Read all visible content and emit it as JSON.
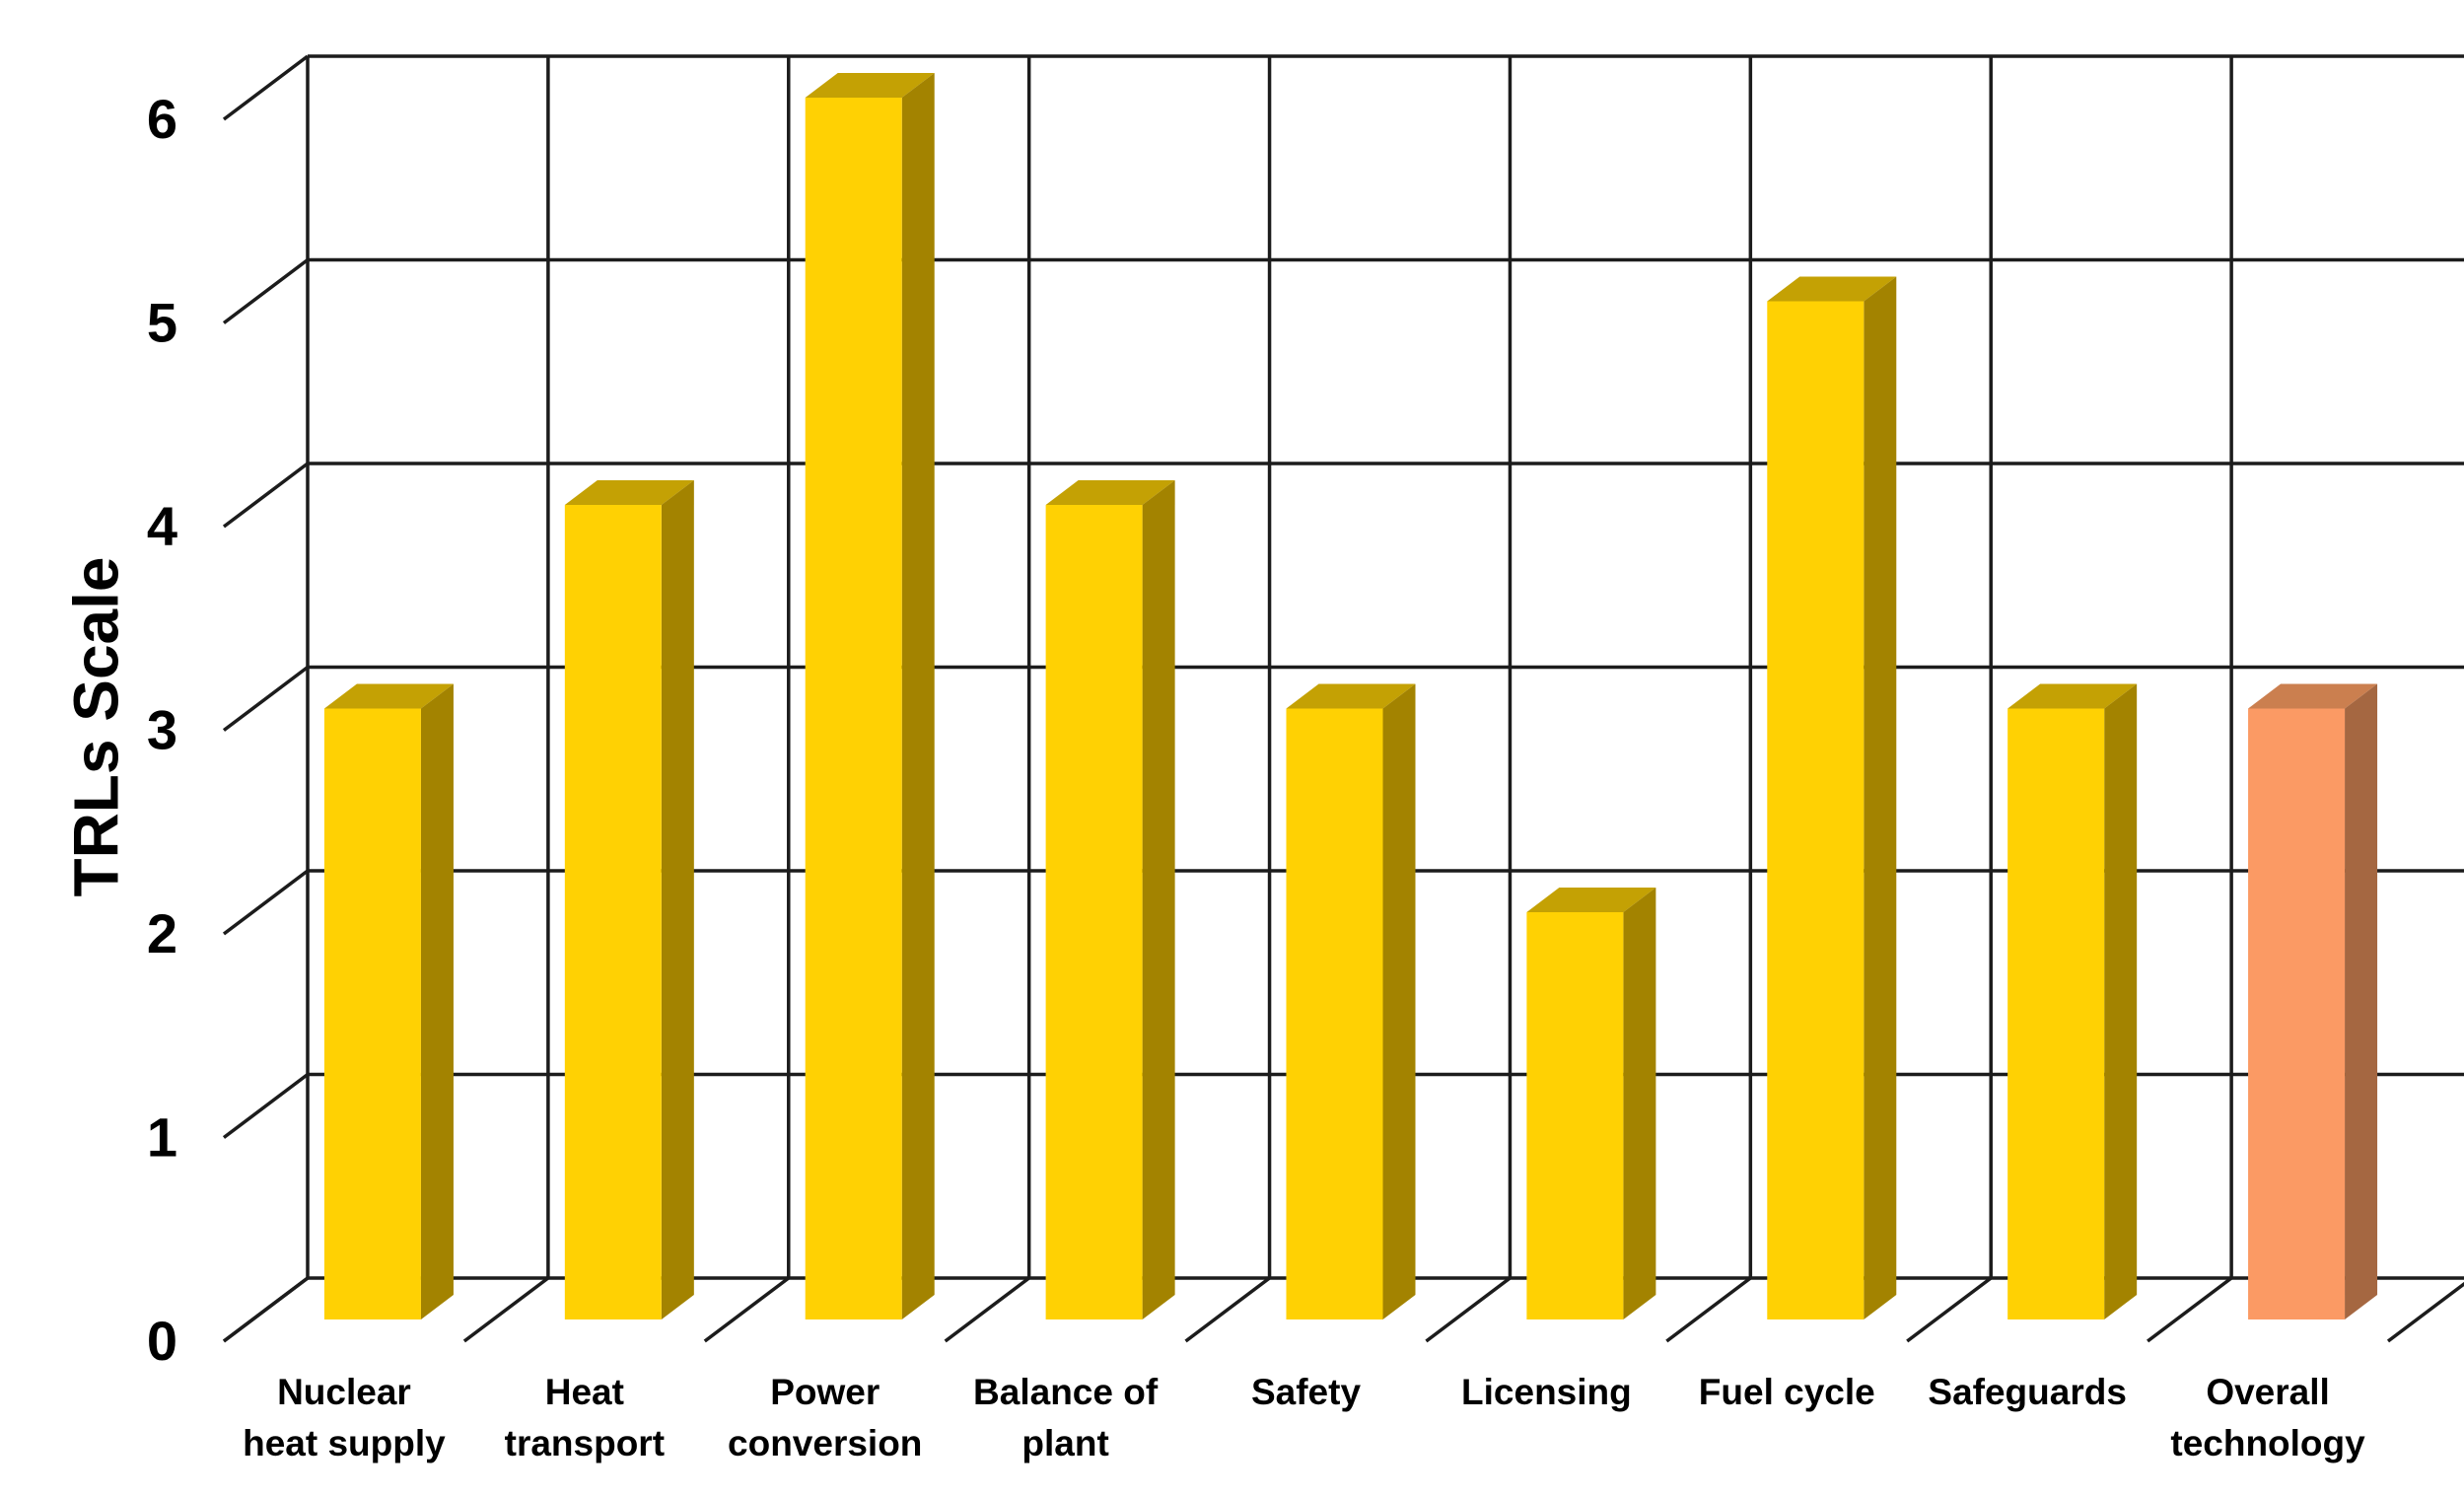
{
  "chart_data": {
    "type": "bar",
    "style": "3d-clustered-column",
    "title": "",
    "xlabel": "",
    "ylabel": "TRLs Scale",
    "ylim": [
      0,
      6
    ],
    "ytick_labels": [
      "0",
      "1",
      "2",
      "3",
      "4",
      "5",
      "6"
    ],
    "grid": true,
    "legend_position": "none",
    "categories": [
      "Nuclear heat supply",
      "Heat transport",
      "Power conversion",
      "Balance of plant",
      "Safety",
      "Licensing",
      "Fuel cycle",
      "Safeguards",
      "Overall technology"
    ],
    "values": [
      3,
      4,
      6,
      4,
      3,
      2,
      5,
      3,
      3
    ],
    "bars": [
      {
        "label_lines": [
          "Nuclear",
          "heat supply"
        ],
        "value": 3,
        "color": "gold"
      },
      {
        "label_lines": [
          "Heat",
          "transport"
        ],
        "value": 4,
        "color": "gold"
      },
      {
        "label_lines": [
          "Power",
          "conversion"
        ],
        "value": 6,
        "color": "gold"
      },
      {
        "label_lines": [
          "Balance of",
          "plant"
        ],
        "value": 4,
        "color": "gold"
      },
      {
        "label_lines": [
          "Safety"
        ],
        "value": 3,
        "color": "gold"
      },
      {
        "label_lines": [
          "Licensing"
        ],
        "value": 2,
        "color": "gold"
      },
      {
        "label_lines": [
          "Fuel cycle"
        ],
        "value": 5,
        "color": "gold"
      },
      {
        "label_lines": [
          "Safeguards"
        ],
        "value": 3,
        "color": "gold"
      },
      {
        "label_lines": [
          "Overall",
          "technology"
        ],
        "value": 3,
        "color": "orange"
      }
    ],
    "palette": {
      "gold": {
        "front": "#FFD103",
        "side": "#A38300",
        "top": "#C4A104"
      },
      "orange": {
        "front": "#FB9A64",
        "side": "#A56741",
        "top": "#CB7F4F"
      }
    },
    "line_color": "#1c1c1c",
    "text_color": "#000000"
  }
}
